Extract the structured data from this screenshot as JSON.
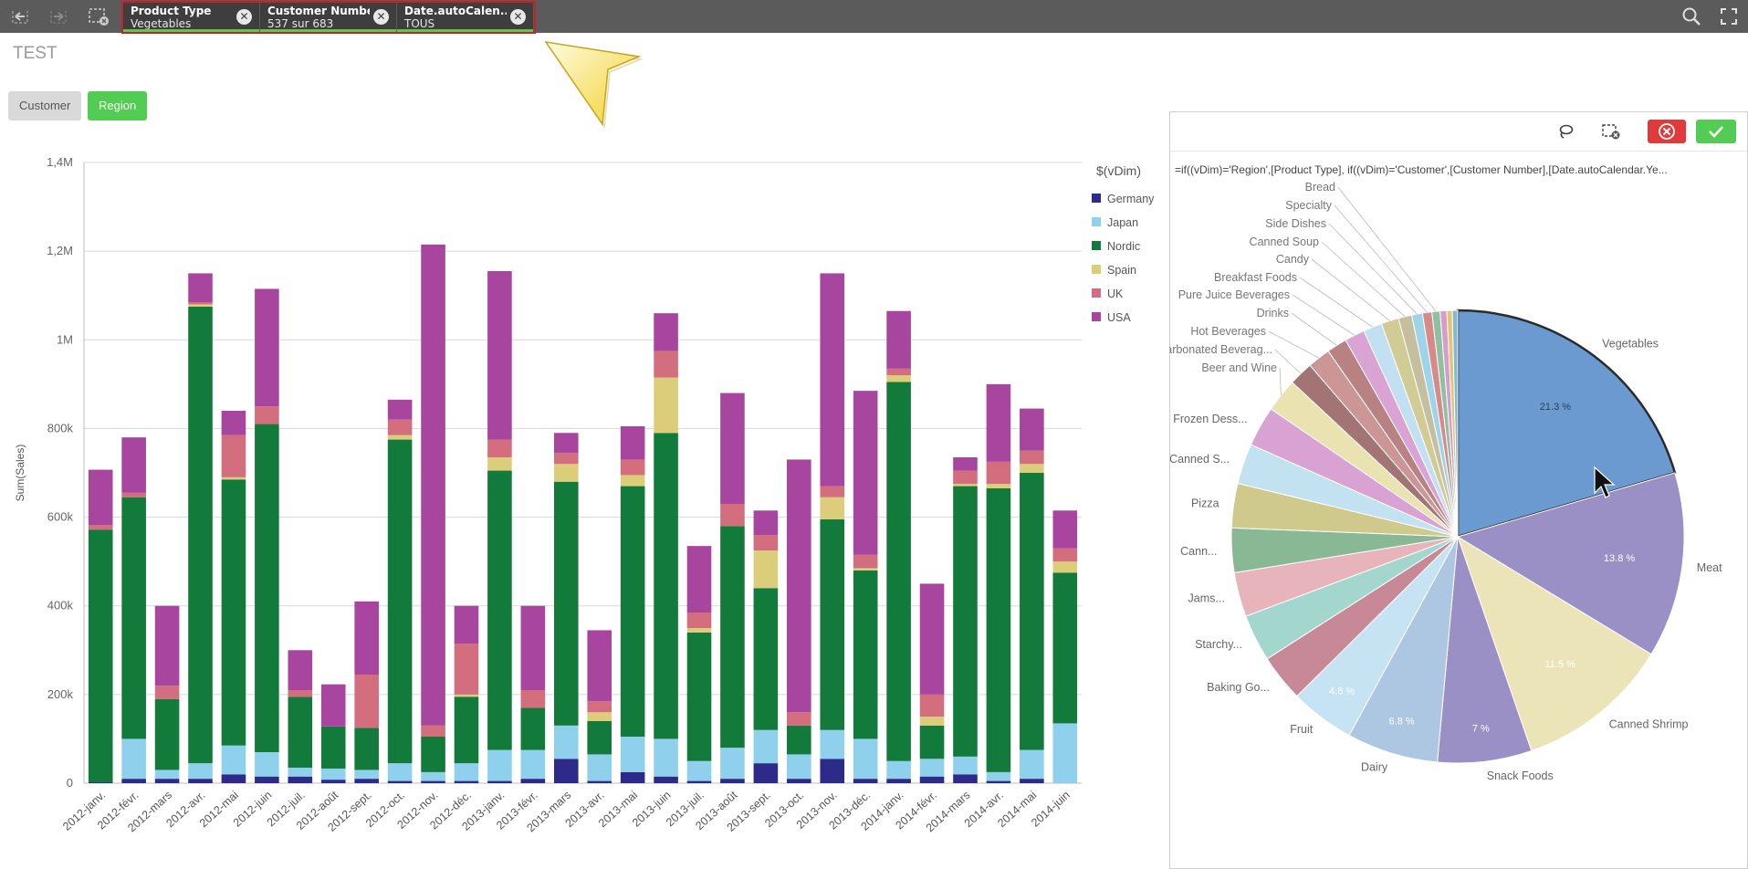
{
  "topbar": {
    "icons": [
      "back-step-icon",
      "forward-step-icon",
      "clear-selections-icon",
      "search-icon",
      "fullscreen-icon"
    ],
    "chips": [
      {
        "title": "Product Type",
        "value": "Vegetables"
      },
      {
        "title": "Customer Number",
        "value": "537 sur 683"
      },
      {
        "title": "Date.autoCalen...",
        "value": "TOUS"
      }
    ]
  },
  "sheet": {
    "title": "TEST"
  },
  "buttons": {
    "customer": "Customer",
    "region": "Region"
  },
  "panel": {
    "expression": "=if((vDim)='Region',[Product Type], if((vDim)='Customer',[Customer Number],[Date.autoCalendar.Ye..."
  },
  "colors": {
    "Germany": "#2e2a8a",
    "Japan": "#8fd0ec",
    "Nordic": "#127a3a",
    "Spain": "#dccd7a",
    "UK": "#d26e7e",
    "USA": "#a8469f",
    "accent_green": "#52cc52",
    "accent_red": "#e03a3a"
  },
  "chart_data": [
    {
      "type": "bar",
      "stacked": true,
      "ylabel": "Sum(Sales)",
      "ylim": [
        0,
        1400000
      ],
      "yticks": [
        "0",
        "200k",
        "400k",
        "600k",
        "800k",
        "1M",
        "1,2M",
        "1,4M"
      ],
      "legend_title": "$(vDim)",
      "legend_position": "right",
      "grid": true,
      "categories": [
        "2012-janv.",
        "2012-févr.",
        "2012-mars",
        "2012-avr.",
        "2012-mai",
        "2012-juin",
        "2012-juil.",
        "2012-août",
        "2012-sept.",
        "2012-oct.",
        "2012-nov.",
        "2012-déc.",
        "2013-janv.",
        "2013-févr.",
        "2013-mars",
        "2013-avr.",
        "2013-mai",
        "2013-juin",
        "2013-juil.",
        "2013-août",
        "2013-sept.",
        "2013-oct.",
        "2013-nov.",
        "2013-déc.",
        "2014-janv.",
        "2014-févr.",
        "2014-mars",
        "2014-avr.",
        "2014-mai",
        "2014-juin"
      ],
      "series": [
        {
          "name": "Germany",
          "values": [
            2000,
            10000,
            10000,
            10000,
            20000,
            15000,
            15000,
            8000,
            10000,
            5000,
            5000,
            5000,
            5000,
            10000,
            55000,
            5000,
            25000,
            15000,
            5000,
            10000,
            45000,
            10000,
            55000,
            10000,
            10000,
            15000,
            20000,
            5000,
            10000,
            0
          ]
        },
        {
          "name": "Japan",
          "values": [
            0,
            90000,
            20000,
            35000,
            65000,
            55000,
            20000,
            25000,
            20000,
            40000,
            20000,
            40000,
            70000,
            65000,
            75000,
            60000,
            80000,
            85000,
            45000,
            70000,
            75000,
            55000,
            65000,
            90000,
            40000,
            40000,
            40000,
            20000,
            65000,
            135000
          ]
        },
        {
          "name": "Nordic",
          "values": [
            570000,
            545000,
            160000,
            1030000,
            600000,
            740000,
            160000,
            95000,
            95000,
            730000,
            80000,
            150000,
            630000,
            95000,
            550000,
            75000,
            565000,
            690000,
            290000,
            500000,
            320000,
            65000,
            475000,
            380000,
            855000,
            75000,
            610000,
            640000,
            625000,
            340000
          ]
        },
        {
          "name": "Spain",
          "values": [
            0,
            0,
            0,
            5000,
            5000,
            0,
            0,
            0,
            0,
            10000,
            0,
            5000,
            30000,
            0,
            40000,
            20000,
            25000,
            125000,
            10000,
            0,
            85000,
            0,
            50000,
            5000,
            15000,
            20000,
            5000,
            10000,
            20000,
            25000
          ]
        },
        {
          "name": "UK",
          "values": [
            10000,
            10000,
            30000,
            5000,
            95000,
            40000,
            15000,
            0,
            120000,
            35000,
            25000,
            115000,
            40000,
            40000,
            25000,
            25000,
            35000,
            60000,
            35000,
            50000,
            35000,
            30000,
            25000,
            30000,
            15000,
            50000,
            30000,
            50000,
            30000,
            30000
          ]
        },
        {
          "name": "USA",
          "values": [
            125000,
            125000,
            180000,
            65000,
            55000,
            265000,
            90000,
            95000,
            165000,
            45000,
            1085000,
            85000,
            380000,
            190000,
            45000,
            160000,
            75000,
            85000,
            150000,
            250000,
            55000,
            570000,
            480000,
            370000,
            130000,
            250000,
            30000,
            175000,
            95000,
            85000
          ]
        }
      ]
    },
    {
      "type": "pie",
      "legend_position": "none",
      "selected": "Vegetables",
      "slices": [
        {
          "label": "Vegetables",
          "value": 21.3,
          "pct_label": "21.3 %",
          "color": "#6a9ad0"
        },
        {
          "label": "Meat",
          "value": 13.8,
          "pct_label": "13.8 %",
          "color": "#9b90c6"
        },
        {
          "label": "Canned Shrimp",
          "value": 11.5,
          "pct_label": "11.5 %",
          "color": "#ebe4b8"
        },
        {
          "label": "Snack Foods",
          "value": 7,
          "pct_label": "7 %",
          "color": "#9b90c6"
        },
        {
          "label": "Dairy",
          "value": 6.8,
          "pct_label": "6.8 %",
          "color": "#adc6e2"
        },
        {
          "label": "Fruit",
          "value": 4.8,
          "pct_label": "4.8 %",
          "color": "#c6e3f4"
        },
        {
          "label": "Baking Go...",
          "value": 3.5,
          "pct_label": "",
          "color": "#c78898"
        },
        {
          "label": "Starchy...",
          "value": 3.5,
          "pct_label": "",
          "color": "#a3d6cc"
        },
        {
          "label": "Jams...",
          "value": 3.3,
          "pct_label": "",
          "color": "#e8b4bc"
        },
        {
          "label": "Cann...",
          "value": 3.3,
          "pct_label": "",
          "color": "#89b894"
        },
        {
          "label": "Pizza",
          "value": 3.3,
          "pct_label": "",
          "color": "#cfc98c"
        },
        {
          "label": "Canned S...",
          "value": 3,
          "pct_label": "",
          "color": "#c3e2f1"
        },
        {
          "label": "Frozen Dess...",
          "value": 3,
          "pct_label": "",
          "color": "#d8a2d2"
        },
        {
          "label": "Beer and Wine",
          "value": 2.5,
          "pct_label": "",
          "color": "#ebe2b2"
        },
        {
          "label": "Carbonated Beverag...",
          "value": 1.8,
          "pct_label": "",
          "color": "#a27474"
        },
        {
          "label": "Hot Beverages",
          "value": 1.7,
          "pct_label": "",
          "color": "#cc9696"
        },
        {
          "label": "Drinks",
          "value": 1.5,
          "pct_label": "",
          "color": "#b98282"
        },
        {
          "label": "Pure Juice Beverages",
          "value": 1.5,
          "pct_label": "",
          "color": "#d9a4d3"
        },
        {
          "label": "Breakfast Foods",
          "value": 1.4,
          "pct_label": "",
          "color": "#c2e0f2"
        },
        {
          "label": "Candy",
          "value": 1.3,
          "pct_label": "",
          "color": "#d1cb96"
        },
        {
          "label": "Canned Soup",
          "value": 1,
          "pct_label": "",
          "color": "#c5bfa0"
        },
        {
          "label": "Side Dishes",
          "value": 0.8,
          "pct_label": "",
          "color": "#9ed4e8"
        },
        {
          "label": "Specialty",
          "value": 0.7,
          "pct_label": "",
          "color": "#d88a8a"
        },
        {
          "label": "Bread",
          "value": 0.6,
          "pct_label": "",
          "color": "#8fc0a0"
        },
        {
          "label": "",
          "value": 0.5,
          "pct_label": "",
          "color": "#d69ccd"
        },
        {
          "label": "",
          "value": 0.4,
          "pct_label": "",
          "color": "#e6c470"
        },
        {
          "label": "",
          "value": 0.4,
          "pct_label": "",
          "color": "#80b8d8"
        }
      ]
    }
  ]
}
